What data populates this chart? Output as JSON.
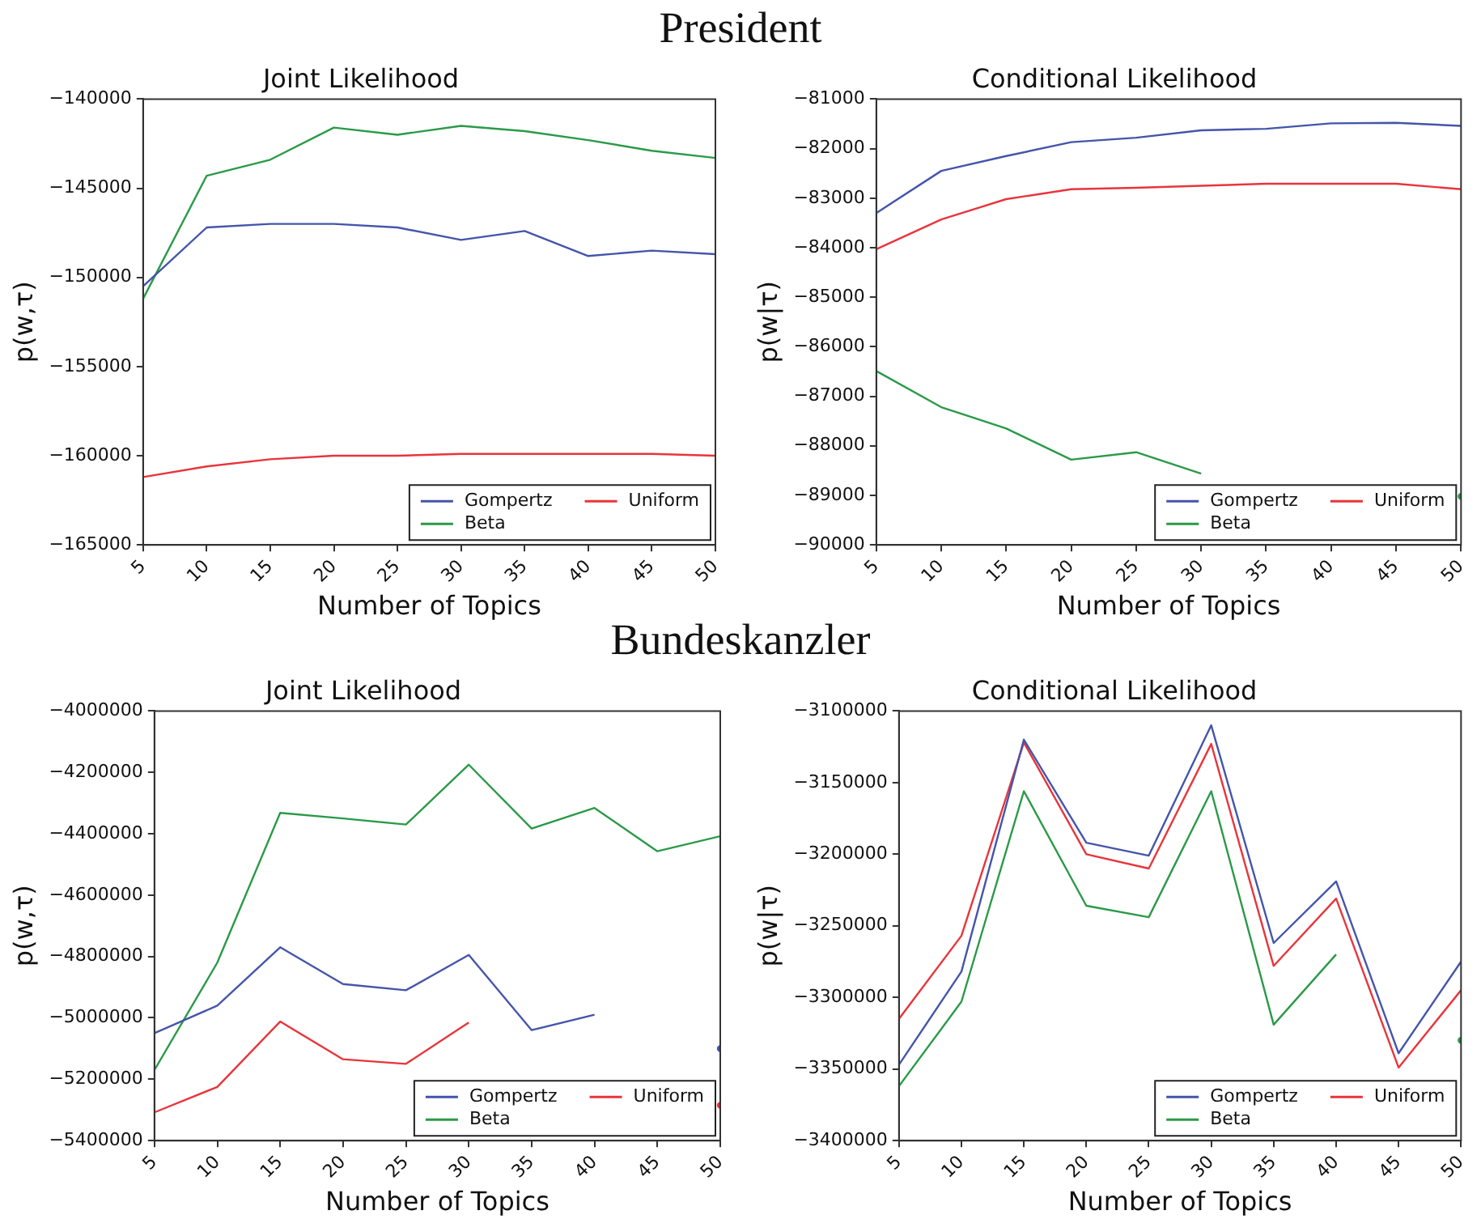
{
  "chart_data": [
    {
      "type": "line",
      "title": "Joint Likelihood",
      "xlabel": "Number of Topics",
      "ylabel": "p(w,τ)",
      "annotations": [
        "President"
      ],
      "x": [
        5,
        10,
        15,
        20,
        25,
        30,
        35,
        40,
        45,
        50
      ],
      "xlim": [
        5,
        50
      ],
      "xticks": [
        5,
        10,
        15,
        20,
        25,
        30,
        35,
        40,
        45,
        50
      ],
      "ylim": [
        -165000,
        -140000
      ],
      "yticks": [
        -165000,
        -160000,
        -155000,
        -150000,
        -145000,
        -140000
      ],
      "grid": false,
      "legend": "bottom right",
      "marker": "none",
      "line_style": "solid",
      "series": [
        {
          "name": "Gompertz",
          "color": "#4455aa",
          "values": [
            -150500,
            -147200,
            -147000,
            -147000,
            -147200,
            -147900,
            -147400,
            -148800,
            -148500,
            -148700
          ]
        },
        {
          "name": "Beta",
          "color": "#2a9a48",
          "values": [
            -151200,
            -144300,
            -143400,
            -141600,
            -142000,
            -141500,
            -141800,
            -142300,
            -142900,
            -143300
          ]
        },
        {
          "name": "Uniform",
          "color": "#e8353b",
          "values": [
            -161200,
            -160600,
            -160200,
            -160000,
            -160000,
            -159900,
            -159900,
            -159900,
            -159900,
            -160000
          ]
        }
      ]
    },
    {
      "type": "line",
      "title": "Conditional Likelihood",
      "xlabel": "Number of Topics",
      "ylabel": "p(w|τ)",
      "x": [
        5,
        10,
        15,
        20,
        25,
        30,
        35,
        40,
        45,
        50
      ],
      "xlim": [
        5,
        50
      ],
      "xticks": [
        5,
        10,
        15,
        20,
        25,
        30,
        35,
        40,
        45,
        50
      ],
      "ylim": [
        -90000,
        -81000
      ],
      "yticks": [
        -90000,
        -89000,
        -88000,
        -87000,
        -86000,
        -85000,
        -84000,
        -83000,
        -82000,
        -81000
      ],
      "grid": false,
      "legend": "bottom right",
      "marker": "none",
      "line_style": "solid",
      "series": [
        {
          "name": "Gompertz",
          "color": "#4455aa",
          "values": [
            -83300,
            -82450,
            -82150,
            -81870,
            -81780,
            -81630,
            -81600,
            -81490,
            -81480,
            -81540
          ]
        },
        {
          "name": "Beta",
          "color": "#2a9a48",
          "values": [
            -86490,
            -87220,
            -87650,
            -88280,
            -88130,
            -88560,
            null,
            null,
            null,
            -89020
          ]
        },
        {
          "name": "Uniform",
          "color": "#e8353b",
          "values": [
            -84030,
            -83430,
            -83020,
            -82820,
            -82790,
            -82750,
            -82710,
            -82710,
            -82710,
            -82820
          ]
        }
      ]
    },
    {
      "type": "line",
      "title": "Joint Likelihood",
      "xlabel": "Number of Topics",
      "ylabel": "p(w,τ)",
      "annotations": [
        "Bundeskanzler"
      ],
      "x": [
        5,
        10,
        15,
        20,
        25,
        30,
        35,
        40,
        45,
        50
      ],
      "xlim": [
        5,
        50
      ],
      "xticks": [
        5,
        10,
        15,
        20,
        25,
        30,
        35,
        40,
        45,
        50
      ],
      "ylim": [
        -5400000,
        -4000000
      ],
      "yticks": [
        -5400000,
        -5200000,
        -5000000,
        -4800000,
        -4600000,
        -4400000,
        -4200000,
        -4000000
      ],
      "grid": false,
      "legend": "bottom right",
      "marker": "none",
      "line_style": "solid",
      "series": [
        {
          "name": "Gompertz",
          "color": "#4455aa",
          "values": [
            -5050000,
            -4960000,
            -4770000,
            -4890000,
            -4910000,
            -4795000,
            -5040000,
            -4990000,
            null,
            -5100000
          ]
        },
        {
          "name": "Beta",
          "color": "#2a9a48",
          "values": [
            -5170000,
            -4820000,
            -4332000,
            -4350000,
            -4370000,
            -4175000,
            -4383000,
            -4316000,
            -4457000,
            -4408000
          ]
        },
        {
          "name": "Uniform",
          "color": "#e8353b",
          "values": [
            -5308000,
            -5225000,
            -5012000,
            -5135000,
            -5150000,
            -5015000,
            null,
            null,
            null,
            -5285000
          ]
        }
      ]
    },
    {
      "type": "line",
      "title": "Conditional Likelihood",
      "xlabel": "Number of Topics",
      "ylabel": "p(w|τ)",
      "x": [
        5,
        10,
        15,
        20,
        25,
        30,
        35,
        40,
        45,
        50
      ],
      "xlim": [
        5,
        50
      ],
      "xticks": [
        5,
        10,
        15,
        20,
        25,
        30,
        35,
        40,
        45,
        50
      ],
      "ylim": [
        -3400000,
        -3100000
      ],
      "yticks": [
        -3400000,
        -3350000,
        -3300000,
        -3250000,
        -3200000,
        -3150000,
        -3100000
      ],
      "grid": false,
      "legend": "bottom right",
      "marker": "none",
      "line_style": "solid",
      "series": [
        {
          "name": "Gompertz",
          "color": "#4455aa",
          "values": [
            -3347000,
            -3282000,
            -3120000,
            -3192000,
            -3201000,
            -3110000,
            -3262000,
            -3219000,
            -3339000,
            -3275000
          ]
        },
        {
          "name": "Beta",
          "color": "#2a9a48",
          "values": [
            -3362000,
            -3303000,
            -3156000,
            -3236000,
            -3244000,
            -3156000,
            -3319000,
            -3270000,
            null,
            -3330000
          ]
        },
        {
          "name": "Uniform",
          "color": "#e8353b",
          "values": [
            -3315000,
            -3257000,
            -3122000,
            -3200000,
            -3210000,
            -3123000,
            -3278000,
            -3231000,
            -3349000,
            -3295000
          ]
        }
      ]
    }
  ]
}
